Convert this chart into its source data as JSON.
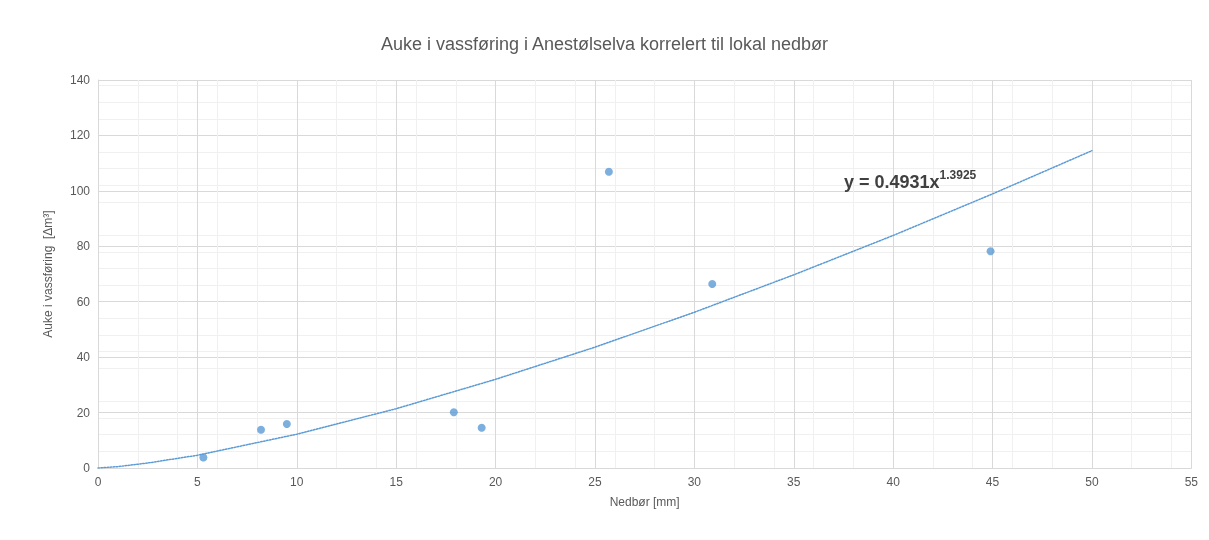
{
  "chart_data": {
    "type": "scatter",
    "title": "Auke i vassføring i Anestølselva korrelert til lokal nedbør",
    "xlabel": "Nedbør [mm]",
    "ylabel": "Auke i vassføring  [Δm³]",
    "xlim": [
      0,
      55
    ],
    "xticks": [
      0,
      5,
      10,
      15,
      20,
      25,
      30,
      35,
      40,
      45,
      50,
      55
    ],
    "ylim": [
      0,
      140
    ],
    "yticks": [
      0,
      20,
      40,
      60,
      80,
      100,
      120,
      140
    ],
    "grid": true,
    "series": [
      {
        "color": "#5b9bd5",
        "marker": "circle",
        "x": [
          5.3,
          8.2,
          9.5,
          17.9,
          19.3,
          25.7,
          30.9,
          44.9
        ],
        "values": [
          3.8,
          13.8,
          15.9,
          20.1,
          14.5,
          106.9,
          66.4,
          78.2
        ]
      },
      {
        "type": "line",
        "color": "#5b9bd5",
        "marker": "none",
        "line_style": "dotted",
        "x": [
          0,
          1,
          2.5,
          5,
          10,
          15,
          20,
          25,
          30,
          35,
          40,
          45,
          50
        ],
        "values": [
          0,
          0.5,
          1.8,
          4.6,
          12.2,
          21.4,
          32,
          43.6,
          56.2,
          69.7,
          83.9,
          98.9,
          114.5
        ]
      }
    ],
    "annotations": [
      "y = 0.4931x$^{1.3925}$"
    ]
  }
}
